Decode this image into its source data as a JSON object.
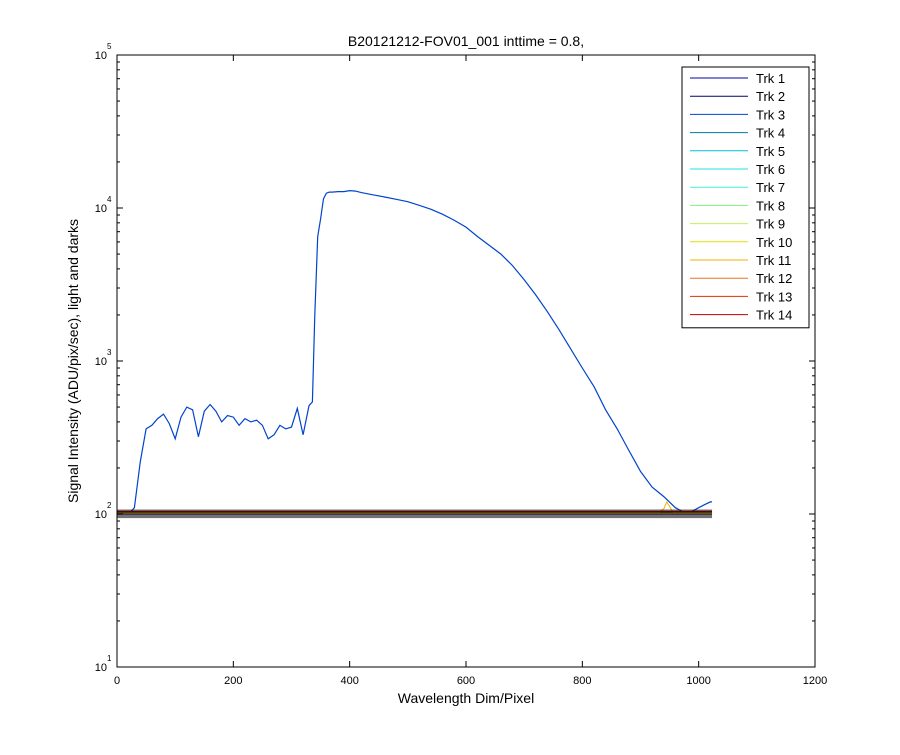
{
  "chart_data": {
    "type": "line",
    "title": "B20121212-FOV01_001 inttime = 0.8,",
    "xlabel": "Wavelength Dim/Pixel",
    "ylabel": "Signal Intensity (ADU/pix/sec), light and darks",
    "xlim": [
      0,
      1200
    ],
    "ylim": [
      10,
      100000
    ],
    "yscale": "log",
    "grid": false,
    "legend_position": "top-right",
    "x_ticks": [
      "0",
      "200",
      "400",
      "600",
      "800",
      "1000",
      "1200"
    ],
    "y_ticks": [
      {
        "base": "10",
        "exp": "1",
        "value": 10
      },
      {
        "base": "10",
        "exp": "2",
        "value": 100
      },
      {
        "base": "10",
        "exp": "3",
        "value": 1000
      },
      {
        "base": "10",
        "exp": "4",
        "value": 10000
      },
      {
        "base": "10",
        "exp": "5",
        "value": 100000
      }
    ],
    "series": [
      {
        "name": "Trk 1",
        "color": "#0000a8",
        "x": [
          0,
          1023
        ],
        "y": [
          103,
          103
        ]
      },
      {
        "name": "Trk 2",
        "color": "#000070",
        "x": [
          0,
          1023
        ],
        "y": [
          100,
          100
        ]
      },
      {
        "name": "Trk 3",
        "color": "#0044cc",
        "x": [
          0,
          20,
          30,
          40,
          50,
          60,
          70,
          80,
          90,
          100,
          110,
          120,
          130,
          140,
          150,
          160,
          170,
          180,
          190,
          200,
          210,
          220,
          230,
          240,
          250,
          260,
          270,
          280,
          290,
          300,
          310,
          320,
          330,
          336,
          340,
          345,
          350,
          355,
          360,
          365,
          370,
          380,
          390,
          400,
          410,
          420,
          440,
          460,
          480,
          500,
          520,
          540,
          560,
          580,
          600,
          620,
          640,
          660,
          680,
          700,
          720,
          740,
          760,
          780,
          800,
          820,
          840,
          860,
          880,
          900,
          920,
          940,
          960,
          980,
          1000,
          1010,
          1020,
          1023
        ],
        "y": [
          100,
          100,
          110,
          220,
          360,
          380,
          420,
          450,
          390,
          310,
          430,
          500,
          480,
          320,
          470,
          520,
          470,
          400,
          440,
          430,
          380,
          420,
          400,
          410,
          380,
          310,
          330,
          380,
          360,
          370,
          490,
          330,
          510,
          540,
          2000,
          6500,
          8500,
          11500,
          12500,
          12700,
          12700,
          12800,
          12800,
          13000,
          12900,
          12600,
          12200,
          11800,
          11400,
          11000,
          10400,
          9800,
          9100,
          8300,
          7500,
          6500,
          5700,
          5000,
          4200,
          3400,
          2700,
          2100,
          1600,
          1200,
          900,
          680,
          480,
          360,
          260,
          190,
          150,
          130,
          110,
          100,
          110,
          115,
          120,
          120
        ]
      },
      {
        "name": "Trk 4",
        "color": "#007aa0",
        "x": [
          0,
          1023
        ],
        "y": [
          101,
          101
        ]
      },
      {
        "name": "Trk 5",
        "color": "#00c0d0",
        "x": [
          0,
          1023
        ],
        "y": [
          101,
          101
        ]
      },
      {
        "name": "Trk 6",
        "color": "#20e0e0",
        "x": [
          0,
          1023
        ],
        "y": [
          101,
          101
        ]
      },
      {
        "name": "Trk 7",
        "color": "#40f0d8",
        "x": [
          0,
          1023
        ],
        "y": [
          101,
          101
        ]
      },
      {
        "name": "Trk 8",
        "color": "#80f080",
        "x": [
          0,
          1023
        ],
        "y": [
          101,
          101
        ]
      },
      {
        "name": "Trk 9",
        "color": "#c0f060",
        "x": [
          0,
          1023
        ],
        "y": [
          101,
          101
        ]
      },
      {
        "name": "Trk 10",
        "color": "#e0e000",
        "x": [
          0,
          1023
        ],
        "y": [
          101,
          101
        ]
      },
      {
        "name": "Trk 11",
        "color": "#f0b000",
        "x": [
          0,
          930,
          940,
          945,
          950,
          955,
          960,
          1023
        ],
        "y": [
          102,
          102,
          108,
          120,
          112,
          104,
          102,
          102
        ]
      },
      {
        "name": "Trk 12",
        "color": "#f07020",
        "x": [
          0,
          1023
        ],
        "y": [
          102,
          102
        ]
      },
      {
        "name": "Trk 13",
        "color": "#e03000",
        "x": [
          0,
          1023
        ],
        "y": [
          104,
          104
        ]
      },
      {
        "name": "Trk 14",
        "color": "#c00000",
        "x": [
          0,
          1023
        ],
        "y": [
          104,
          104
        ]
      }
    ]
  }
}
